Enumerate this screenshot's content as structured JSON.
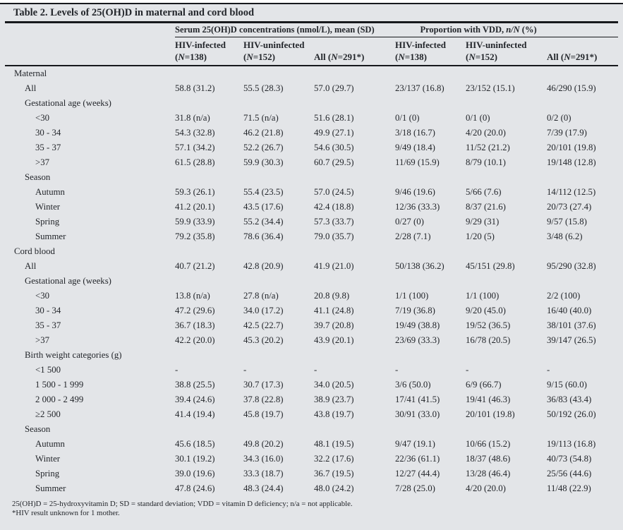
{
  "title": "Table 2. Levels of 25(OH)D in maternal and cord blood",
  "header": {
    "group1": "Serum 25(OH)D concentrations (nmol/L), mean (SD)",
    "group2": {
      "pre": "Proportion with VDD, ",
      "italic": "n/N",
      "post": " (%)"
    },
    "subcolumns": [
      {
        "top": "HIV-infected",
        "pre": "(",
        "it": "N",
        "post": "=138)"
      },
      {
        "top": "HIV-uninfected",
        "pre": "(",
        "it": "N",
        "post": "=152)"
      },
      {
        "top": "",
        "pre": "All (",
        "it": "N",
        "post": "=291*)"
      },
      {
        "top": "HIV-infected",
        "pre": "(",
        "it": "N",
        "post": "=138)"
      },
      {
        "top": "HIV-uninfected",
        "pre": "(",
        "it": "N",
        "post": "=152)"
      },
      {
        "top": "",
        "pre": "All (",
        "it": "N",
        "post": "=291*)"
      }
    ]
  },
  "table": {
    "rows": [
      {
        "label": "Maternal",
        "indent": 0,
        "values": [
          "",
          "",
          "",
          "",
          "",
          ""
        ]
      },
      {
        "label": "All",
        "indent": 1,
        "values": [
          "58.8 (31.2)",
          "55.5 (28.3)",
          "57.0 (29.7)",
          "23/137 (16.8)",
          "23/152 (15.1)",
          "46/290 (15.9)"
        ]
      },
      {
        "label": "Gestational age (weeks)",
        "indent": 1,
        "values": [
          "",
          "",
          "",
          "",
          "",
          ""
        ]
      },
      {
        "label": "<30",
        "indent": 2,
        "values": [
          "31.8 (n/a)",
          "71.5 (n/a)",
          "51.6 (28.1)",
          "0/1 (0)",
          "0/1 (0)",
          "0/2 (0)"
        ]
      },
      {
        "label": "30 - 34",
        "indent": 2,
        "values": [
          "54.3 (32.8)",
          "46.2 (21.8)",
          "49.9 (27.1)",
          "3/18 (16.7)",
          "4/20 (20.0)",
          "7/39 (17.9)"
        ]
      },
      {
        "label": "35 - 37",
        "indent": 2,
        "values": [
          "57.1 (34.2)",
          "52.2 (26.7)",
          "54.6 (30.5)",
          "9/49 (18.4)",
          "11/52 (21.2)",
          "20/101 (19.8)"
        ]
      },
      {
        "label": ">37",
        "indent": 2,
        "values": [
          "61.5 (28.8)",
          "59.9 (30.3)",
          "60.7 (29.5)",
          "11/69 (15.9)",
          "8/79 (10.1)",
          "19/148 (12.8)"
        ]
      },
      {
        "label": "Season",
        "indent": 1,
        "values": [
          "",
          "",
          "",
          "",
          "",
          ""
        ]
      },
      {
        "label": "Autumn",
        "indent": 2,
        "values": [
          "59.3 (26.1)",
          "55.4 (23.5)",
          "57.0 (24.5)",
          "9/46 (19.6)",
          "5/66 (7.6)",
          "14/112 (12.5)"
        ]
      },
      {
        "label": "Winter",
        "indent": 2,
        "values": [
          "41.2 (20.1)",
          "43.5 (17.6)",
          "42.4 (18.8)",
          "12/36 (33.3)",
          "8/37 (21.6)",
          "20/73 (27.4)"
        ]
      },
      {
        "label": "Spring",
        "indent": 2,
        "values": [
          "59.9 (33.9)",
          "55.2 (34.4)",
          "57.3 (33.7)",
          "0/27 (0)",
          "9/29 (31)",
          "9/57 (15.8)"
        ]
      },
      {
        "label": "Summer",
        "indent": 2,
        "values": [
          "79.2 (35.8)",
          "78.6 (36.4)",
          "79.0 (35.7)",
          "2/28 (7.1)",
          "1/20 (5)",
          "3/48 (6.2)"
        ]
      },
      {
        "label": "Cord blood",
        "indent": 0,
        "values": [
          "",
          "",
          "",
          "",
          "",
          ""
        ]
      },
      {
        "label": "All",
        "indent": 1,
        "values": [
          "40.7 (21.2)",
          "42.8 (20.9)",
          "41.9 (21.0)",
          "50/138 (36.2)",
          "45/151 (29.8)",
          "95/290 (32.8)"
        ]
      },
      {
        "label": "Gestational age (weeks)",
        "indent": 1,
        "values": [
          "",
          "",
          "",
          "",
          "",
          ""
        ]
      },
      {
        "label": "<30",
        "indent": 2,
        "values": [
          "13.8 (n/a)",
          "27.8 (n/a)",
          "20.8 (9.8)",
          "1/1 (100)",
          "1/1 (100)",
          "2/2 (100)"
        ]
      },
      {
        "label": "30 - 34",
        "indent": 2,
        "values": [
          "47.2 (29.6)",
          "34.0 (17.2)",
          "41.1 (24.8)",
          "7/19 (36.8)",
          "9/20 (45.0)",
          "16/40 (40.0)"
        ]
      },
      {
        "label": "35 - 37",
        "indent": 2,
        "values": [
          "36.7 (18.3)",
          "42.5 (22.7)",
          "39.7 (20.8)",
          "19/49 (38.8)",
          "19/52 (36.5)",
          "38/101 (37.6)"
        ]
      },
      {
        "label": ">37",
        "indent": 2,
        "values": [
          "42.2 (20.0)",
          "45.3 (20.2)",
          "43.9 (20.1)",
          "23/69 (33.3)",
          "16/78 (20.5)",
          "39/147 (26.5)"
        ]
      },
      {
        "label": "Birth weight categories (g)",
        "indent": 1,
        "values": [
          "",
          "",
          "",
          "",
          "",
          ""
        ]
      },
      {
        "label": "<1 500",
        "indent": 2,
        "values": [
          "-",
          "-",
          "-",
          "-",
          "-",
          "-"
        ]
      },
      {
        "label": "1 500 - 1 999",
        "indent": 2,
        "values": [
          "38.8 (25.5)",
          "30.7 (17.3)",
          "34.0 (20.5)",
          "3/6 (50.0)",
          "6/9 (66.7)",
          "9/15 (60.0)"
        ]
      },
      {
        "label": "2 000 - 2 499",
        "indent": 2,
        "values": [
          "39.4 (24.6)",
          "37.8 (22.8)",
          "38.9 (23.7)",
          "17/41 (41.5)",
          "19/41 (46.3)",
          "36/83 (43.4)"
        ]
      },
      {
        "label": "≥2 500",
        "indent": 2,
        "values": [
          "41.4 (19.4)",
          "45.8 (19.7)",
          "43.8 (19.7)",
          "30/91 (33.0)",
          "20/101 (19.8)",
          "50/192 (26.0)"
        ]
      },
      {
        "label": "Season",
        "indent": 1,
        "values": [
          "",
          "",
          "",
          "",
          "",
          ""
        ]
      },
      {
        "label": "Autumn",
        "indent": 2,
        "values": [
          "45.6 (18.5)",
          "49.8 (20.2)",
          "48.1 (19.5)",
          "9/47 (19.1)",
          "10/66 (15.2)",
          "19/113 (16.8)"
        ]
      },
      {
        "label": "Winter",
        "indent": 2,
        "values": [
          "30.1 (19.2)",
          "34.3 (16.0)",
          "32.2 (17.6)",
          "22/36 (61.1)",
          "18/37 (48.6)",
          "40/73 (54.8)"
        ]
      },
      {
        "label": "Spring",
        "indent": 2,
        "values": [
          "39.0 (19.6)",
          "33.3 (18.7)",
          "36.7 (19.5)",
          "12/27 (44.4)",
          "13/28 (46.4)",
          "25/56 (44.6)"
        ]
      },
      {
        "label": "Summer",
        "indent": 2,
        "values": [
          "47.8 (24.6)",
          "48.3 (24.4)",
          "48.0 (24.2)",
          "7/28 (25.0)",
          "4/20 (20.0)",
          "11/48 (22.9)"
        ]
      }
    ]
  },
  "footnotes": [
    "25(OH)D = 25-hydroxyvitamin D; SD = standard deviation; VDD = vitamin D deficiency; n/a = not applicable.",
    "*HIV result unknown for 1 mother."
  ],
  "colors": {
    "background": "#e3e5e8",
    "rule": "#17191d",
    "text": "#23262b"
  }
}
